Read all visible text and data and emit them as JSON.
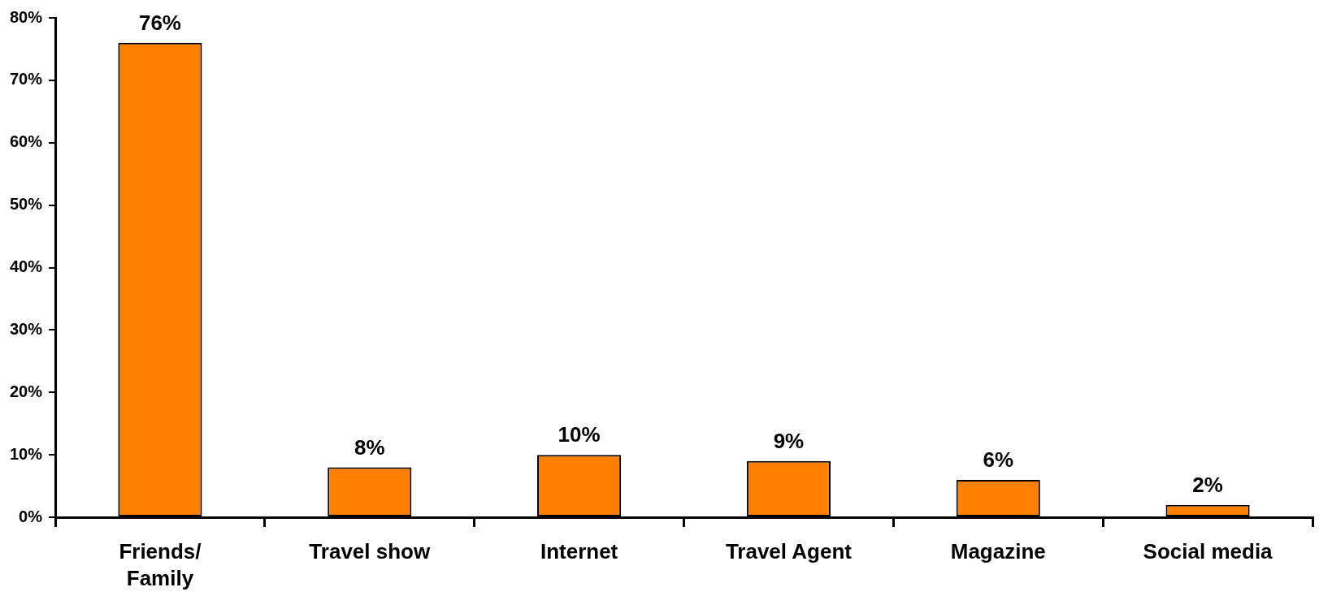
{
  "chart_data": {
    "type": "bar",
    "categories": [
      "Friends/ Family",
      "Travel show",
      "Internet",
      "Travel Agent",
      "Magazine",
      "Social media"
    ],
    "values": [
      76,
      8,
      10,
      9,
      6,
      2
    ],
    "color": "#ff8000",
    "ylim": [
      0,
      80
    ],
    "yticks": [
      {
        "value": 0,
        "label": "0%"
      },
      {
        "value": 10,
        "label": "10%"
      },
      {
        "value": 20,
        "label": "20%"
      },
      {
        "value": 30,
        "label": "30%"
      },
      {
        "value": 40,
        "label": "40%"
      },
      {
        "value": 50,
        "label": "50%"
      },
      {
        "value": 60,
        "label": "60%"
      },
      {
        "value": 70,
        "label": "70%"
      },
      {
        "value": 80,
        "label": "80%"
      }
    ],
    "value_labels": [
      "76%",
      "8%",
      "10%",
      "9%",
      "6%",
      "2%"
    ],
    "grid": false,
    "legend": false
  }
}
